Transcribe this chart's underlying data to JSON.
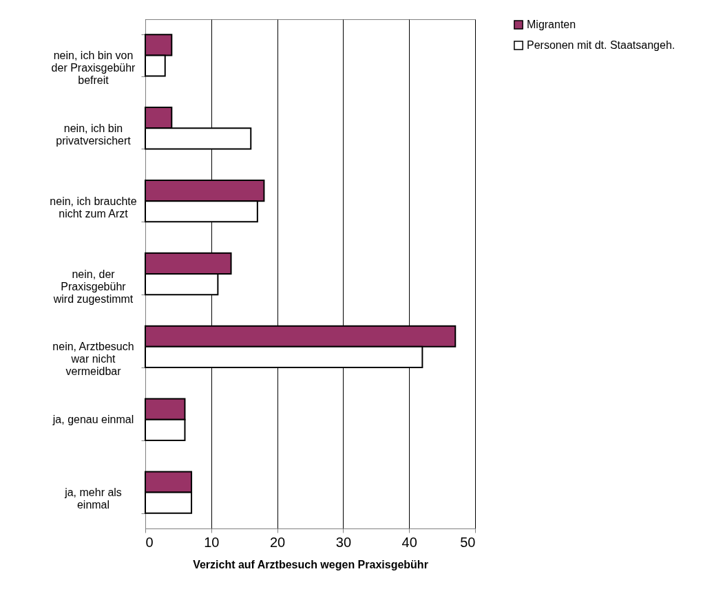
{
  "chart_data": {
    "type": "bar",
    "orientation": "horizontal",
    "xlabel": "Verzicht auf Arztbesuch wegen Praxisgebühr",
    "categories": [
      "nein, ich bin von der Praxisgebühr befreit",
      "nein, ich bin privatversichert",
      "nein, ich brauchte nicht zum Arzt",
      "nein, der Praxisgebühr wird zugestimmt",
      "nein, Arztbesuch war nicht vermeidbar",
      "ja, genau einmal",
      "ja, mehr als einmal"
    ],
    "series": [
      {
        "name": "Migranten",
        "color": "#993366",
        "values": [
          4,
          4,
          18,
          13,
          47,
          6,
          7
        ]
      },
      {
        "name": "Personen mit dt. Staatsangeh.",
        "color": "#ffffff",
        "values": [
          3,
          16,
          17,
          11,
          42,
          6,
          7
        ]
      }
    ],
    "xlim": [
      0,
      50
    ],
    "xticks": [
      0,
      10,
      20,
      30,
      40,
      50
    ],
    "grid": "x",
    "legend": "right"
  }
}
